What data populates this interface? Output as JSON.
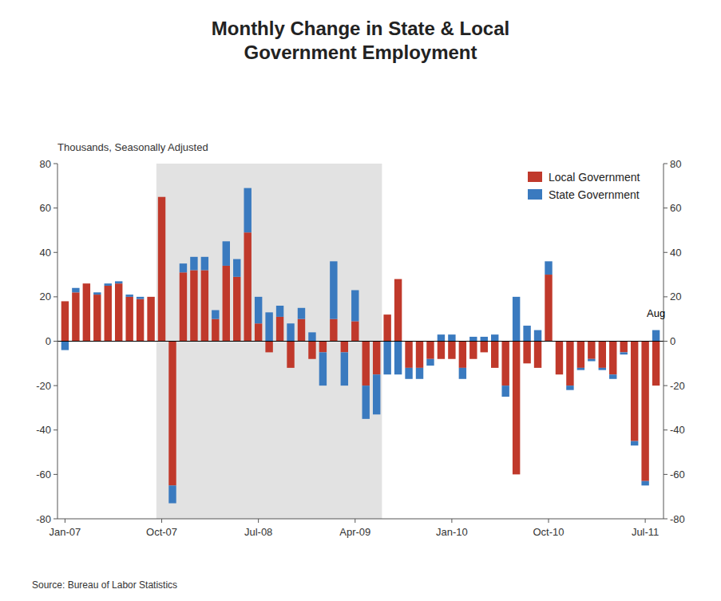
{
  "chart_data": {
    "type": "bar",
    "title": "Monthly Change in State & Local\nGovernment Employment",
    "ylabel": "Thousands, Seasonally Adjusted",
    "source": "Source: Bureau of Labor Statistics",
    "categories": [
      "Jan-07",
      null,
      null,
      null,
      null,
      null,
      null,
      null,
      null,
      "Oct-07",
      null,
      null,
      null,
      null,
      null,
      null,
      null,
      null,
      "Jul-08",
      null,
      null,
      null,
      null,
      null,
      null,
      null,
      null,
      "Apr-09",
      null,
      null,
      null,
      null,
      null,
      null,
      null,
      null,
      "Jan-10",
      null,
      null,
      null,
      null,
      null,
      null,
      null,
      null,
      "Oct-10",
      null,
      null,
      null,
      null,
      null,
      null,
      null,
      null,
      "Jul-11",
      null
    ],
    "series": [
      {
        "name": "Local Government",
        "color": "#c0392b",
        "values": [
          18,
          22,
          26,
          21,
          25,
          26,
          20,
          19,
          20,
          65,
          -65,
          31,
          32,
          32,
          10,
          34,
          29,
          49,
          8,
          -5,
          11,
          -12,
          10,
          -8,
          -5,
          10,
          -5,
          9,
          -20,
          -15,
          12,
          28,
          -12,
          -12,
          -8,
          -8,
          -8,
          -12,
          -8,
          -5,
          -12,
          -20,
          -60,
          -10,
          -12,
          30,
          -15,
          -20,
          -12,
          -8,
          -12,
          -15,
          -5,
          -45,
          -63,
          -20
        ]
      },
      {
        "name": "State Government",
        "color": "#3a7abf",
        "values": [
          -4,
          2,
          0,
          1,
          1,
          1,
          1,
          1,
          0,
          0,
          -8,
          4,
          6,
          6,
          4,
          11,
          8,
          20,
          12,
          13,
          5,
          8,
          5,
          4,
          -15,
          26,
          -15,
          14,
          -15,
          -18,
          -15,
          -15,
          -5,
          -5,
          -3,
          3,
          3,
          -5,
          2,
          2,
          3,
          -5,
          20,
          7,
          5,
          6,
          0,
          -2,
          -1,
          -1,
          -1,
          -2,
          -1,
          -2,
          -2,
          5
        ]
      }
    ],
    "stacked": true,
    "shaded_span": {
      "start": 9,
      "end": 29
    },
    "annotations": [
      {
        "text": "Aug",
        "x": 55,
        "y": 10
      }
    ],
    "ylim": [
      -80,
      80
    ],
    "yticks": [
      -80,
      -60,
      -40,
      -20,
      0,
      20,
      40,
      60,
      80
    ],
    "y2lim": [
      -80,
      80
    ],
    "y2ticks": [
      -80,
      -60,
      -40,
      -20,
      0,
      20,
      40,
      60,
      80
    ],
    "legend": "upper right",
    "grid": false
  }
}
